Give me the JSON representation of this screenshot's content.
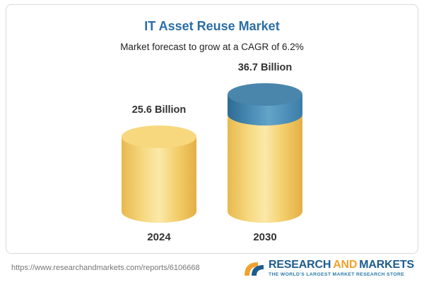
{
  "card": {
    "title": "IT Asset Reuse Market",
    "subtitle": "Market forecast to grow at a CAGR of 6.2%"
  },
  "chart_data": {
    "type": "bar",
    "title": "IT Asset Reuse Market",
    "subtitle": "Market forecast to grow at a CAGR of 6.2%",
    "categories": [
      "2024",
      "2030"
    ],
    "values": [
      25.6,
      36.7
    ],
    "value_labels": [
      "25.6 Billion",
      "36.7 Billion"
    ],
    "unit": "Billion",
    "cagr": "6.2%",
    "ylim": [
      0,
      40
    ],
    "grid": false,
    "legend_position": "none",
    "colors": {
      "bar_base": "#F6CE6B",
      "bar_growth": "#4181AC"
    }
  },
  "footer": {
    "url": "https://www.researchandmarkets.com/reports/6106668",
    "logo": {
      "word1": "RESEARCH",
      "word2": "AND",
      "word3": "MARKETS",
      "tagline": "THE WORLD'S LARGEST MARKET RESEARCH STORE"
    }
  }
}
